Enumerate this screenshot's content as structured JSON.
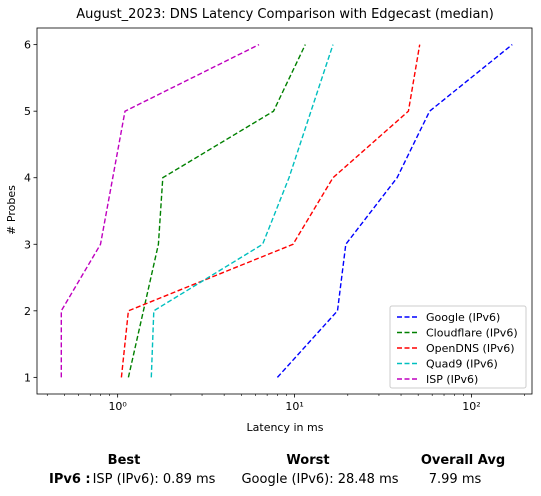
{
  "chart_data": {
    "type": "line",
    "title": "August_2023: DNS Latency Comparison with Edgecast (median)",
    "xlabel": "Latency in ms",
    "ylabel": "# Probes",
    "xscale": "log",
    "xlim": [
      0.35,
      220
    ],
    "ylim": [
      0.75,
      6.25
    ],
    "x_ticks": [
      1,
      10,
      100
    ],
    "x_tick_labels": [
      "10⁰",
      "10¹",
      "10²"
    ],
    "y_ticks": [
      1,
      2,
      3,
      4,
      5,
      6
    ],
    "y_tick_labels": [
      "1",
      "2",
      "3",
      "4",
      "5",
      "6"
    ],
    "legend_position": "lower-right",
    "line_style": "dashed",
    "series": [
      {
        "name": "Google (IPv6)",
        "color": "#0000ff",
        "points": [
          [
            8.0,
            1
          ],
          [
            17.5,
            2
          ],
          [
            19.5,
            3
          ],
          [
            38,
            4
          ],
          [
            58,
            5
          ],
          [
            170,
            6
          ]
        ]
      },
      {
        "name": "Cloudflare (IPv6)",
        "color": "#008000",
        "points": [
          [
            1.15,
            1
          ],
          [
            1.7,
            3
          ],
          [
            1.8,
            4
          ],
          [
            7.6,
            5
          ],
          [
            11.5,
            6
          ]
        ]
      },
      {
        "name": "OpenDNS (IPv6)",
        "color": "#ff0000",
        "points": [
          [
            1.05,
            1
          ],
          [
            1.15,
            2
          ],
          [
            9.8,
            3
          ],
          [
            16.5,
            4
          ],
          [
            44,
            5
          ],
          [
            51,
            6
          ]
        ]
      },
      {
        "name": "Quad9 (IPv6)",
        "color": "#00bfbf",
        "points": [
          [
            1.55,
            1
          ],
          [
            1.6,
            2
          ],
          [
            6.6,
            3
          ],
          [
            9.3,
            4
          ],
          [
            16.5,
            6
          ]
        ]
      },
      {
        "name": "ISP (IPv6)",
        "color": "#bf00bf",
        "points": [
          [
            0.48,
            1
          ],
          [
            0.48,
            2
          ],
          [
            0.8,
            3
          ],
          [
            1.1,
            5
          ],
          [
            6.3,
            6
          ]
        ]
      }
    ]
  },
  "summary": {
    "best_header": "Best",
    "worst_header": "Worst",
    "avg_header": "Overall Avg",
    "row_label": "IPv6 :",
    "best_value": "ISP (IPv6): 0.89 ms",
    "worst_value": "Google (IPv6): 28.48 ms",
    "avg_value": "7.99 ms"
  }
}
